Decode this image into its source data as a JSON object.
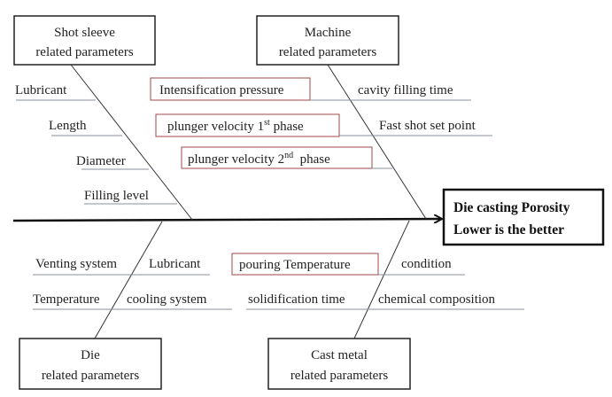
{
  "effect": {
    "line1": "Die casting Porosity",
    "line2": "Lower is the better"
  },
  "categories": {
    "shot_sleeve": {
      "line1": "Shot sleeve",
      "line2": "related parameters"
    },
    "machine": {
      "line1": "Machine",
      "line2": "related parameters"
    },
    "die": {
      "line1": "Die",
      "line2": "related parameters"
    },
    "cast_metal": {
      "line1": "Cast metal",
      "line2": "related parameters"
    }
  },
  "causes": {
    "shot_sleeve": [
      "Lubricant",
      "Length",
      "Diameter",
      "Filling level"
    ],
    "machine": {
      "intensification": "Intensification pressure",
      "plunger1": {
        "prefix": "plunger velocity 1",
        "sup": "st",
        "suffix": " phase"
      },
      "plunger2": {
        "prefix": "plunger velocity 2",
        "sup": "nd",
        "suffix": "  phase"
      },
      "cavity": "cavity filling time",
      "fast_shot": "Fast shot set point"
    },
    "die": [
      "Venting system",
      "Lubricant",
      "Temperature",
      "cooling system"
    ],
    "cast_metal": [
      "pouring Temperature",
      "condition",
      "solidification time",
      "chemical composition"
    ]
  },
  "colors": {
    "highlight_border": "#a04848",
    "line": "#333333"
  }
}
